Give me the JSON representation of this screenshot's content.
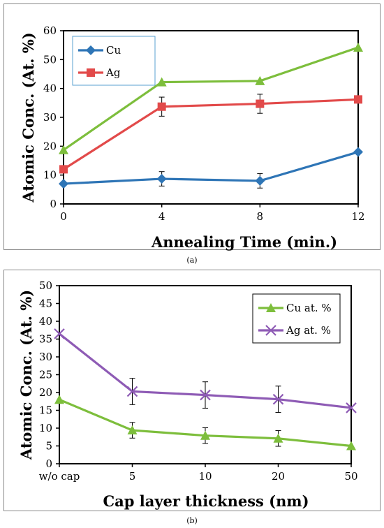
{
  "chart_data": [
    {
      "type": "line",
      "caption": "(a)",
      "xlabel": "Annealing Time (min.)",
      "ylabel": "Atomic Conc. (At. %)",
      "x": [
        0,
        4,
        8,
        12
      ],
      "x_ticks": [
        0,
        4,
        8,
        12
      ],
      "xlim": [
        0,
        12
      ],
      "ylim": [
        0,
        60
      ],
      "y_ticks": [
        0,
        10,
        20,
        30,
        40,
        50,
        60
      ],
      "grid": false,
      "legend_position": "top-left",
      "series": [
        {
          "name": "Cu",
          "color": "#2E75B6",
          "marker": "diamond",
          "values": [
            7,
            8.7,
            8,
            18
          ],
          "errors": [
            0,
            2.5,
            2.5,
            0
          ]
        },
        {
          "name": "Ag",
          "color": "#E24A4A",
          "marker": "square",
          "values": [
            12,
            33.7,
            34.7,
            36.2
          ],
          "errors": [
            0,
            3.3,
            3.3,
            0
          ]
        },
        {
          "color": "#7DBE3C",
          "marker": "triangle",
          "values": [
            18.7,
            42.2,
            42.6,
            54.2
          ],
          "errors": [
            0,
            0,
            0,
            0
          ]
        }
      ]
    },
    {
      "type": "line",
      "caption": "(b)",
      "xlabel": "Cap layer thickness (nm)",
      "ylabel": "Atomic Conc. (At. %)",
      "categories": [
        "w/o cap",
        "5",
        "10",
        "20",
        "50"
      ],
      "ylim": [
        0,
        50
      ],
      "y_ticks": [
        0,
        5,
        10,
        15,
        20,
        25,
        30,
        35,
        40,
        45,
        50
      ],
      "grid": false,
      "legend_position": "top-right",
      "series": [
        {
          "name": "Cu at. %",
          "color": "#7DBE3C",
          "marker": "triangle",
          "values": [
            18,
            9.4,
            7.9,
            7.1,
            5
          ],
          "errors": [
            0,
            2.2,
            2.2,
            2.2,
            0
          ]
        },
        {
          "name": "Ag  at. %",
          "color": "#8E5BB5",
          "marker": "x",
          "values": [
            36.5,
            20.3,
            19.3,
            18.1,
            15.7
          ],
          "errors": [
            0,
            3.7,
            3.7,
            3.7,
            0
          ]
        }
      ]
    }
  ]
}
